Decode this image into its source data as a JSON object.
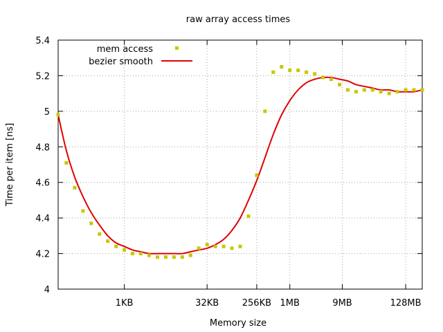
{
  "chart_data": {
    "type": "scatter",
    "title": "raw array access times",
    "xlabel": "Memory size",
    "ylabel": "Time per item [ns]",
    "ylim": [
      4,
      5.4
    ],
    "yticks": [
      4,
      4.2,
      4.4,
      4.6,
      4.8,
      5,
      5.2,
      5.4
    ],
    "ytick_labels": [
      "4",
      "4.2",
      "4.4",
      "4.6",
      "4.8",
      "5",
      "5.2",
      "5.4"
    ],
    "x_scale": "log",
    "xlim_bytes": [
      64,
      268435456
    ],
    "xticks": [
      {
        "label": "1KB",
        "bytes": 1024
      },
      {
        "label": "32KB",
        "bytes": 32768
      },
      {
        "label": "256KB",
        "bytes": 262144
      },
      {
        "label": "1MB",
        "bytes": 1048576
      },
      {
        "label": "9MB",
        "bytes": 9437184
      },
      {
        "label": "128MB",
        "bytes": 134217728
      }
    ],
    "grid": true,
    "legend_position": "top-left",
    "series": [
      {
        "name": "mem access",
        "style": "points",
        "color": "#c8c800",
        "x": [
          64,
          90,
          128,
          181,
          256,
          362,
          512,
          724,
          1024,
          1448,
          2048,
          2896,
          4096,
          5793,
          8192,
          11585,
          16384,
          23170,
          32768,
          46341,
          65536,
          92682,
          131072,
          185364,
          262144,
          370728,
          524288,
          741455,
          1048576,
          1482910,
          2097152,
          2965821,
          4194304,
          5931642,
          8388608,
          11863283,
          16777216,
          23726566,
          33554432,
          47453133,
          67108864,
          94906266,
          134217728,
          189812531,
          268435456
        ],
        "y": [
          4.98,
          4.71,
          4.57,
          4.44,
          4.37,
          4.31,
          4.27,
          4.24,
          4.22,
          4.2,
          4.2,
          4.19,
          4.18,
          4.18,
          4.18,
          4.18,
          4.19,
          4.23,
          4.25,
          4.24,
          4.24,
          4.23,
          4.24,
          4.41,
          4.64,
          5.0,
          5.22,
          5.25,
          5.23,
          5.23,
          5.22,
          5.21,
          5.19,
          5.18,
          5.15,
          5.12,
          5.11,
          5.12,
          5.12,
          5.11,
          5.1,
          5.11,
          5.12,
          5.12,
          5.12
        ]
      },
      {
        "name": "bezier smooth",
        "style": "line",
        "color": "#e00000",
        "x": [
          64,
          90,
          128,
          181,
          256,
          362,
          512,
          724,
          1024,
          1448,
          2048,
          2896,
          4096,
          5793,
          8192,
          11585,
          16384,
          23170,
          32768,
          46341,
          65536,
          92682,
          131072,
          185364,
          262144,
          370728,
          524288,
          741455,
          1048576,
          1482910,
          2097152,
          2965821,
          4194304,
          5931642,
          8388608,
          11863283,
          16777216,
          23726566,
          33554432,
          47453133,
          67108864,
          94906266,
          134217728,
          189812531,
          268435456
        ],
        "y": [
          4.98,
          4.78,
          4.63,
          4.52,
          4.43,
          4.36,
          4.3,
          4.26,
          4.24,
          4.22,
          4.21,
          4.2,
          4.2,
          4.2,
          4.2,
          4.2,
          4.21,
          4.22,
          4.23,
          4.25,
          4.28,
          4.33,
          4.4,
          4.5,
          4.61,
          4.74,
          4.87,
          4.98,
          5.06,
          5.12,
          5.16,
          5.18,
          5.19,
          5.19,
          5.18,
          5.17,
          5.15,
          5.14,
          5.13,
          5.12,
          5.12,
          5.11,
          5.11,
          5.11,
          5.12
        ]
      }
    ]
  }
}
